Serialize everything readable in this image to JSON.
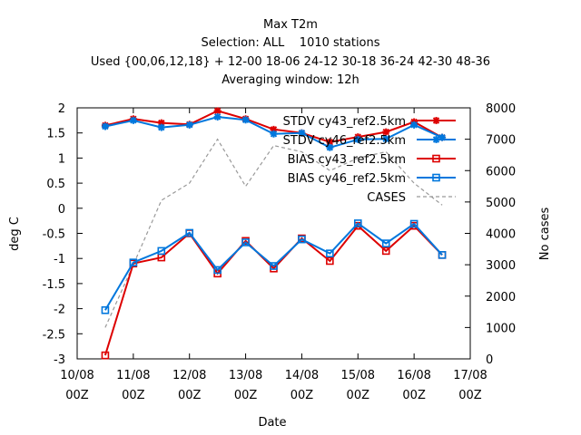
{
  "chart_data": {
    "type": "line",
    "title_lines": [
      "Max T2m",
      "Selection: ALL    1010 stations",
      "Used {00,06,12,18} + 12-00 18-06 24-12 30-18 36-24 42-30 48-36",
      "Averaging window: 12h"
    ],
    "xlabel": "Date",
    "ylabel": "deg C",
    "y2label": "No cases",
    "x_ticks": [
      {
        "x": 0,
        "l1": "10/08",
        "l2": "00Z"
      },
      {
        "x": 1,
        "l1": "11/08",
        "l2": "00Z"
      },
      {
        "x": 2,
        "l1": "12/08",
        "l2": "00Z"
      },
      {
        "x": 3,
        "l1": "13/08",
        "l2": "00Z"
      },
      {
        "x": 4,
        "l1": "14/08",
        "l2": "00Z"
      },
      {
        "x": 5,
        "l1": "15/08",
        "l2": "00Z"
      },
      {
        "x": 6,
        "l1": "16/08",
        "l2": "00Z"
      },
      {
        "x": 7,
        "l1": "17/08",
        "l2": "00Z"
      }
    ],
    "xlim": [
      0,
      7
    ],
    "ylim": [
      -3,
      2
    ],
    "y_ticks": [
      "2",
      "1.5",
      "1",
      "0.5",
      "0",
      "-0.5",
      "-1",
      "-1.5",
      "-2",
      "-2.5",
      "-3"
    ],
    "y2lim": [
      0,
      8000
    ],
    "y2_ticks": [
      "8000",
      "7000",
      "6000",
      "5000",
      "4000",
      "3000",
      "2000",
      "1000",
      "0"
    ],
    "x": [
      0.5,
      1.0,
      1.5,
      2.0,
      2.5,
      3.0,
      3.5,
      4.0,
      4.5,
      5.0,
      5.5,
      6.0,
      6.5
    ],
    "legend_position": "top-right",
    "series": [
      {
        "name": "STDV cy43_ref2.5km",
        "color": "#dd0000",
        "marker": "star",
        "axis": "y1",
        "values": [
          1.65,
          1.78,
          1.7,
          1.67,
          1.94,
          1.78,
          1.57,
          1.5,
          1.32,
          1.42,
          1.52,
          1.72,
          1.41
        ]
      },
      {
        "name": "STDV cy46_ref2.5km",
        "color": "#0077dd",
        "marker": "star",
        "axis": "y1",
        "values": [
          1.63,
          1.75,
          1.61,
          1.66,
          1.82,
          1.76,
          1.48,
          1.5,
          1.21,
          1.37,
          1.38,
          1.66,
          1.41
        ]
      },
      {
        "name": "BIAS cy43_ref2.5km",
        "color": "#dd0000",
        "marker": "square",
        "axis": "y1",
        "values": [
          -2.93,
          -1.1,
          -0.98,
          -0.5,
          -1.3,
          -0.65,
          -1.2,
          -0.6,
          -1.05,
          -0.35,
          -0.85,
          -0.35,
          -0.93
        ]
      },
      {
        "name": "BIAS cy46_ref2.5km",
        "color": "#0077dd",
        "marker": "square",
        "axis": "y1",
        "values": [
          -2.03,
          -1.08,
          -0.85,
          -0.49,
          -1.23,
          -0.68,
          -1.15,
          -0.62,
          -0.9,
          -0.3,
          -0.7,
          -0.31,
          -0.93
        ]
      },
      {
        "name": "CASES",
        "color": "#999999",
        "marker": "none",
        "dash": true,
        "axis": "y2",
        "values": [
          1000,
          3000,
          5050,
          5600,
          7000,
          5500,
          6800,
          6600,
          6000,
          6400,
          6600,
          5600,
          4900
        ]
      }
    ]
  }
}
